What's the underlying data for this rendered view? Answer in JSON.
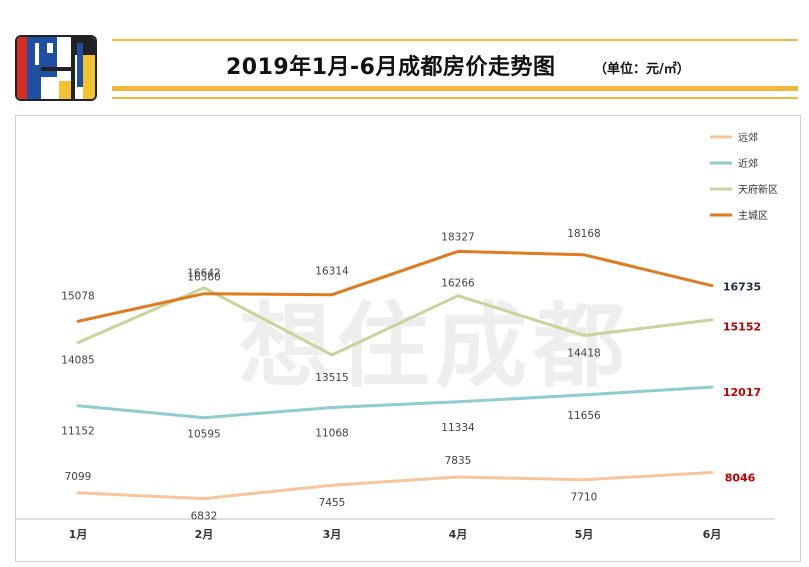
{
  "header": {
    "title": "2019年1月-6月成都房价走势图",
    "unit": "（单位：元/㎡）",
    "logo_colors": [
      "#1f4fa0",
      "#d62d20",
      "#f2c230",
      "#ffffff",
      "#222222"
    ]
  },
  "watermark": "想住成都",
  "chart_data": {
    "type": "line",
    "title": "2019年1月-6月成都房价走势图",
    "unit": "元/㎡",
    "categories": [
      "1月",
      "2月",
      "3月",
      "4月",
      "5月",
      "6月"
    ],
    "ylim": [
      5000,
      20000
    ],
    "xlabel": "",
    "ylabel": "",
    "legend_position": "top-right",
    "series": [
      {
        "name": "远郊",
        "color": "#f6c59b",
        "values": [
          7099,
          6832,
          7455,
          7835,
          7710,
          8046
        ]
      },
      {
        "name": "近郊",
        "color": "#8ecbd3",
        "values": [
          11152,
          10595,
          11068,
          11334,
          11656,
          12017
        ]
      },
      {
        "name": "天府新区",
        "color": "#c7d59a",
        "values": [
          14085,
          16642,
          13515,
          16266,
          14418,
          15152
        ]
      },
      {
        "name": "主城区",
        "color": "#e07a1f",
        "values": [
          15078,
          16360,
          16314,
          18327,
          18168,
          16735
        ]
      }
    ],
    "last_label_colors": {
      "远郊": "#c00000",
      "近郊": "#c00000",
      "天府新区": "#c00000",
      "主城区": "#1f2d4d"
    }
  }
}
